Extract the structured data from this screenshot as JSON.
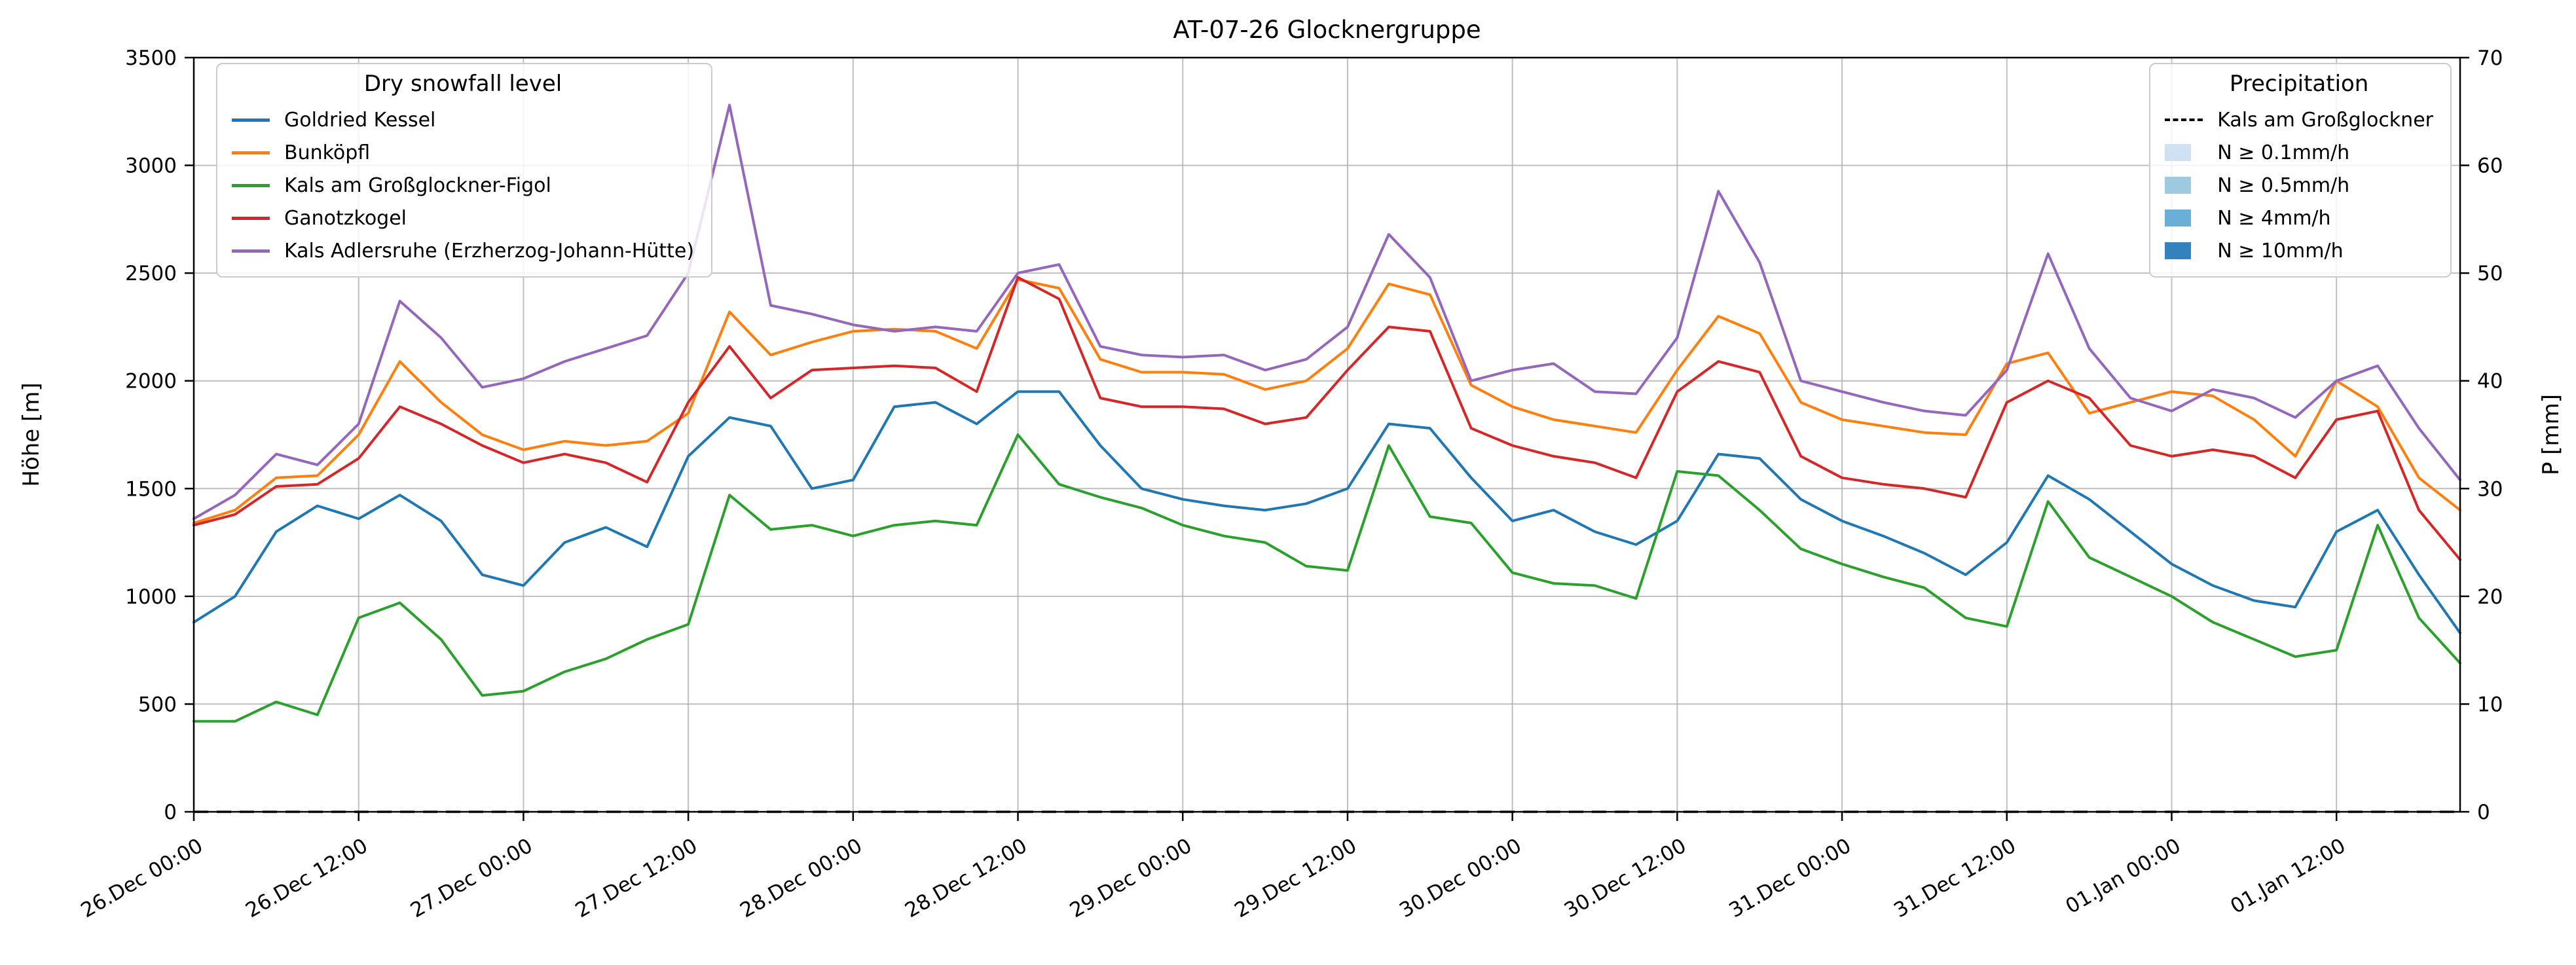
{
  "chart_data": {
    "type": "line",
    "title": "AT-07-26 Glocknergruppe",
    "ylabel_left": "Höhe [m]",
    "ylabel_right": "P [mm]",
    "ylim_left": [
      0,
      3500
    ],
    "ylim_right": [
      0,
      70
    ],
    "yticks_left": [
      0,
      500,
      1000,
      1500,
      2000,
      2500,
      3000,
      3500
    ],
    "yticks_right": [
      0,
      10,
      20,
      30,
      40,
      50,
      60,
      70
    ],
    "grid": true,
    "legend_left_position": "upper left",
    "legend_right_position": "upper right",
    "xlim_hours": [
      0,
      165
    ],
    "x_axis_note": "hours since 26.Dec 00:00, hourly time series",
    "xticks": [
      {
        "hour": 0,
        "label": "26.Dec 00:00"
      },
      {
        "hour": 12,
        "label": "26.Dec 12:00"
      },
      {
        "hour": 24,
        "label": "27.Dec 00:00"
      },
      {
        "hour": 36,
        "label": "27.Dec 12:00"
      },
      {
        "hour": 48,
        "label": "28.Dec 00:00"
      },
      {
        "hour": 60,
        "label": "28.Dec 12:00"
      },
      {
        "hour": 72,
        "label": "29.Dec 00:00"
      },
      {
        "hour": 84,
        "label": "29.Dec 12:00"
      },
      {
        "hour": 96,
        "label": "30.Dec 00:00"
      },
      {
        "hour": 108,
        "label": "30.Dec 12:00"
      },
      {
        "hour": 120,
        "label": "31.Dec 00:00"
      },
      {
        "hour": 132,
        "label": "31.Dec 12:00"
      },
      {
        "hour": 144,
        "label": "01.Jan 00:00"
      },
      {
        "hour": 156,
        "label": "01.Jan 12:00"
      }
    ],
    "x_hours": [
      0,
      3,
      6,
      9,
      12,
      15,
      18,
      21,
      24,
      27,
      30,
      33,
      36,
      39,
      42,
      45,
      48,
      51,
      54,
      57,
      60,
      63,
      66,
      69,
      72,
      75,
      78,
      81,
      84,
      87,
      90,
      93,
      96,
      99,
      102,
      105,
      108,
      111,
      114,
      117,
      120,
      123,
      126,
      129,
      132,
      135,
      138,
      141,
      144,
      147,
      150,
      153,
      156,
      159,
      162,
      165
    ],
    "series": [
      {
        "name": "Goldried Kessel",
        "color": "#1f77b4",
        "values": [
          880,
          1000,
          1300,
          1420,
          1360,
          1470,
          1350,
          1100,
          1050,
          1250,
          1320,
          1230,
          1650,
          1830,
          1790,
          1500,
          1540,
          1880,
          1900,
          1800,
          1950,
          1950,
          1700,
          1500,
          1450,
          1420,
          1400,
          1430,
          1500,
          1800,
          1780,
          1550,
          1350,
          1400,
          1300,
          1240,
          1350,
          1660,
          1640,
          1450,
          1350,
          1280,
          1200,
          1100,
          1250,
          1560,
          1450,
          1300,
          1150,
          1050,
          980,
          950,
          1300,
          1400,
          1100,
          830
        ]
      },
      {
        "name": "Bunköpfl",
        "color": "#ff7f0e",
        "values": [
          1340,
          1400,
          1550,
          1560,
          1750,
          2090,
          1900,
          1750,
          1680,
          1720,
          1700,
          1720,
          1850,
          2320,
          2120,
          2180,
          2230,
          2240,
          2230,
          2150,
          2470,
          2430,
          2100,
          2040,
          2040,
          2030,
          1960,
          2000,
          2150,
          2450,
          2400,
          1980,
          1880,
          1820,
          1790,
          1760,
          2050,
          2300,
          2220,
          1900,
          1820,
          1790,
          1760,
          1750,
          2080,
          2130,
          1850,
          1900,
          1950,
          1930,
          1820,
          1650,
          2000,
          1880,
          1550,
          1400
        ]
      },
      {
        "name": "Kals am Großglockner-Figol",
        "color": "#2ca02c",
        "values": [
          420,
          420,
          510,
          450,
          900,
          970,
          800,
          540,
          560,
          650,
          710,
          800,
          870,
          1470,
          1310,
          1330,
          1280,
          1330,
          1350,
          1330,
          1750,
          1520,
          1460,
          1410,
          1330,
          1280,
          1250,
          1140,
          1120,
          1700,
          1370,
          1340,
          1110,
          1060,
          1050,
          990,
          1580,
          1560,
          1400,
          1220,
          1150,
          1090,
          1040,
          900,
          860,
          1440,
          1180,
          1090,
          1000,
          880,
          800,
          720,
          750,
          1330,
          900,
          690
        ]
      },
      {
        "name": "Ganotzkogel",
        "color": "#d62728",
        "values": [
          1330,
          1380,
          1510,
          1520,
          1640,
          1880,
          1800,
          1700,
          1620,
          1660,
          1620,
          1530,
          1900,
          2160,
          1920,
          2050,
          2060,
          2070,
          2060,
          1950,
          2480,
          2380,
          1920,
          1880,
          1880,
          1870,
          1800,
          1830,
          2050,
          2250,
          2230,
          1780,
          1700,
          1650,
          1620,
          1550,
          1950,
          2090,
          2040,
          1650,
          1550,
          1520,
          1500,
          1460,
          1900,
          2000,
          1920,
          1700,
          1650,
          1680,
          1650,
          1550,
          1820,
          1860,
          1400,
          1170
        ]
      },
      {
        "name": "Kals Adlersruhe (Erzherzog-Johann-Hütte)",
        "color": "#9467bd",
        "values": [
          1360,
          1470,
          1660,
          1610,
          1800,
          2370,
          2200,
          1970,
          2010,
          2090,
          2150,
          2210,
          2500,
          3280,
          2350,
          2310,
          2260,
          2230,
          2250,
          2230,
          2500,
          2540,
          2160,
          2120,
          2110,
          2120,
          2050,
          2100,
          2250,
          2680,
          2480,
          2000,
          2050,
          2080,
          1950,
          1940,
          2200,
          2880,
          2550,
          2000,
          1950,
          1900,
          1860,
          1840,
          2050,
          2590,
          2150,
          1920,
          1860,
          1960,
          1920,
          1830,
          2000,
          2070,
          1780,
          1540
        ]
      }
    ],
    "legends": {
      "snowfall_title": "Dry snowfall level",
      "precipitation_title": "Precipitation"
    },
    "precipitation_line": {
      "label": "Kals am Großglockner",
      "style": "dashed",
      "color": "#000000",
      "x_hours": [
        0,
        165
      ],
      "values_mm": [
        0,
        0
      ]
    },
    "precip_classes": [
      {
        "label": "N ≥ 0.1mm/h",
        "color": "#cfe1f2"
      },
      {
        "label": "N ≥ 0.5mm/h",
        "color": "#9ecae1"
      },
      {
        "label": "N ≥ 4mm/h",
        "color": "#6baed6"
      },
      {
        "label": "N ≥ 10mm/h",
        "color": "#3182bd"
      }
    ]
  }
}
